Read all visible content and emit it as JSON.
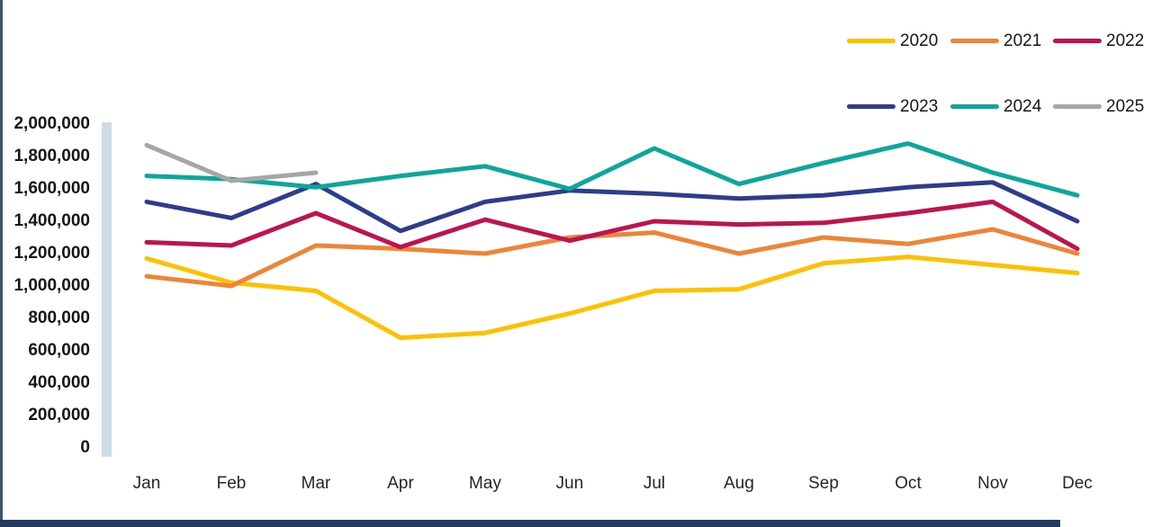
{
  "colors": {
    "left_border": "#3C5667",
    "bottom_bar": "#23395E",
    "axis_band": "#CEDCE4",
    "plot_background": "#FFFFFF"
  },
  "chart_data": {
    "type": "line",
    "title": "",
    "xlabel": "",
    "ylabel": "",
    "ylim": [
      0,
      2000000
    ],
    "y_tick_step": 200000,
    "grid": false,
    "legend_position": "top-right",
    "legend_rows": [
      [
        "2020",
        "2021",
        "2022"
      ],
      [
        "2023",
        "2024",
        "2025"
      ]
    ],
    "categories": [
      "Jan",
      "Feb",
      "Mar",
      "Apr",
      "May",
      "Jun",
      "Jul",
      "Aug",
      "Sep",
      "Oct",
      "Nov",
      "Dec"
    ],
    "series": [
      {
        "name": "2020",
        "color": "#FFC000",
        "values": [
          1170000,
          1020000,
          970000,
          680000,
          710000,
          830000,
          970000,
          980000,
          1140000,
          1180000,
          1130000,
          1080000
        ]
      },
      {
        "name": "2021",
        "color": "#EE8434",
        "values": [
          1060000,
          1000000,
          1250000,
          1230000,
          1200000,
          1300000,
          1330000,
          1200000,
          1300000,
          1260000,
          1350000,
          1200000
        ]
      },
      {
        "name": "2022",
        "color": "#C01250",
        "values": [
          1270000,
          1250000,
          1450000,
          1240000,
          1410000,
          1280000,
          1400000,
          1380000,
          1390000,
          1450000,
          1520000,
          1230000
        ]
      },
      {
        "name": "2023",
        "color": "#2D3C8E",
        "values": [
          1520000,
          1420000,
          1630000,
          1340000,
          1520000,
          1590000,
          1570000,
          1540000,
          1560000,
          1610000,
          1640000,
          1400000
        ]
      },
      {
        "name": "2024",
        "color": "#0AA79C",
        "values": [
          1680000,
          1660000,
          1610000,
          1680000,
          1740000,
          1600000,
          1850000,
          1630000,
          1760000,
          1880000,
          1700000,
          1560000
        ]
      },
      {
        "name": "2025",
        "color": "#A6A6A6",
        "values": [
          1870000,
          1650000,
          1700000
        ]
      }
    ]
  }
}
